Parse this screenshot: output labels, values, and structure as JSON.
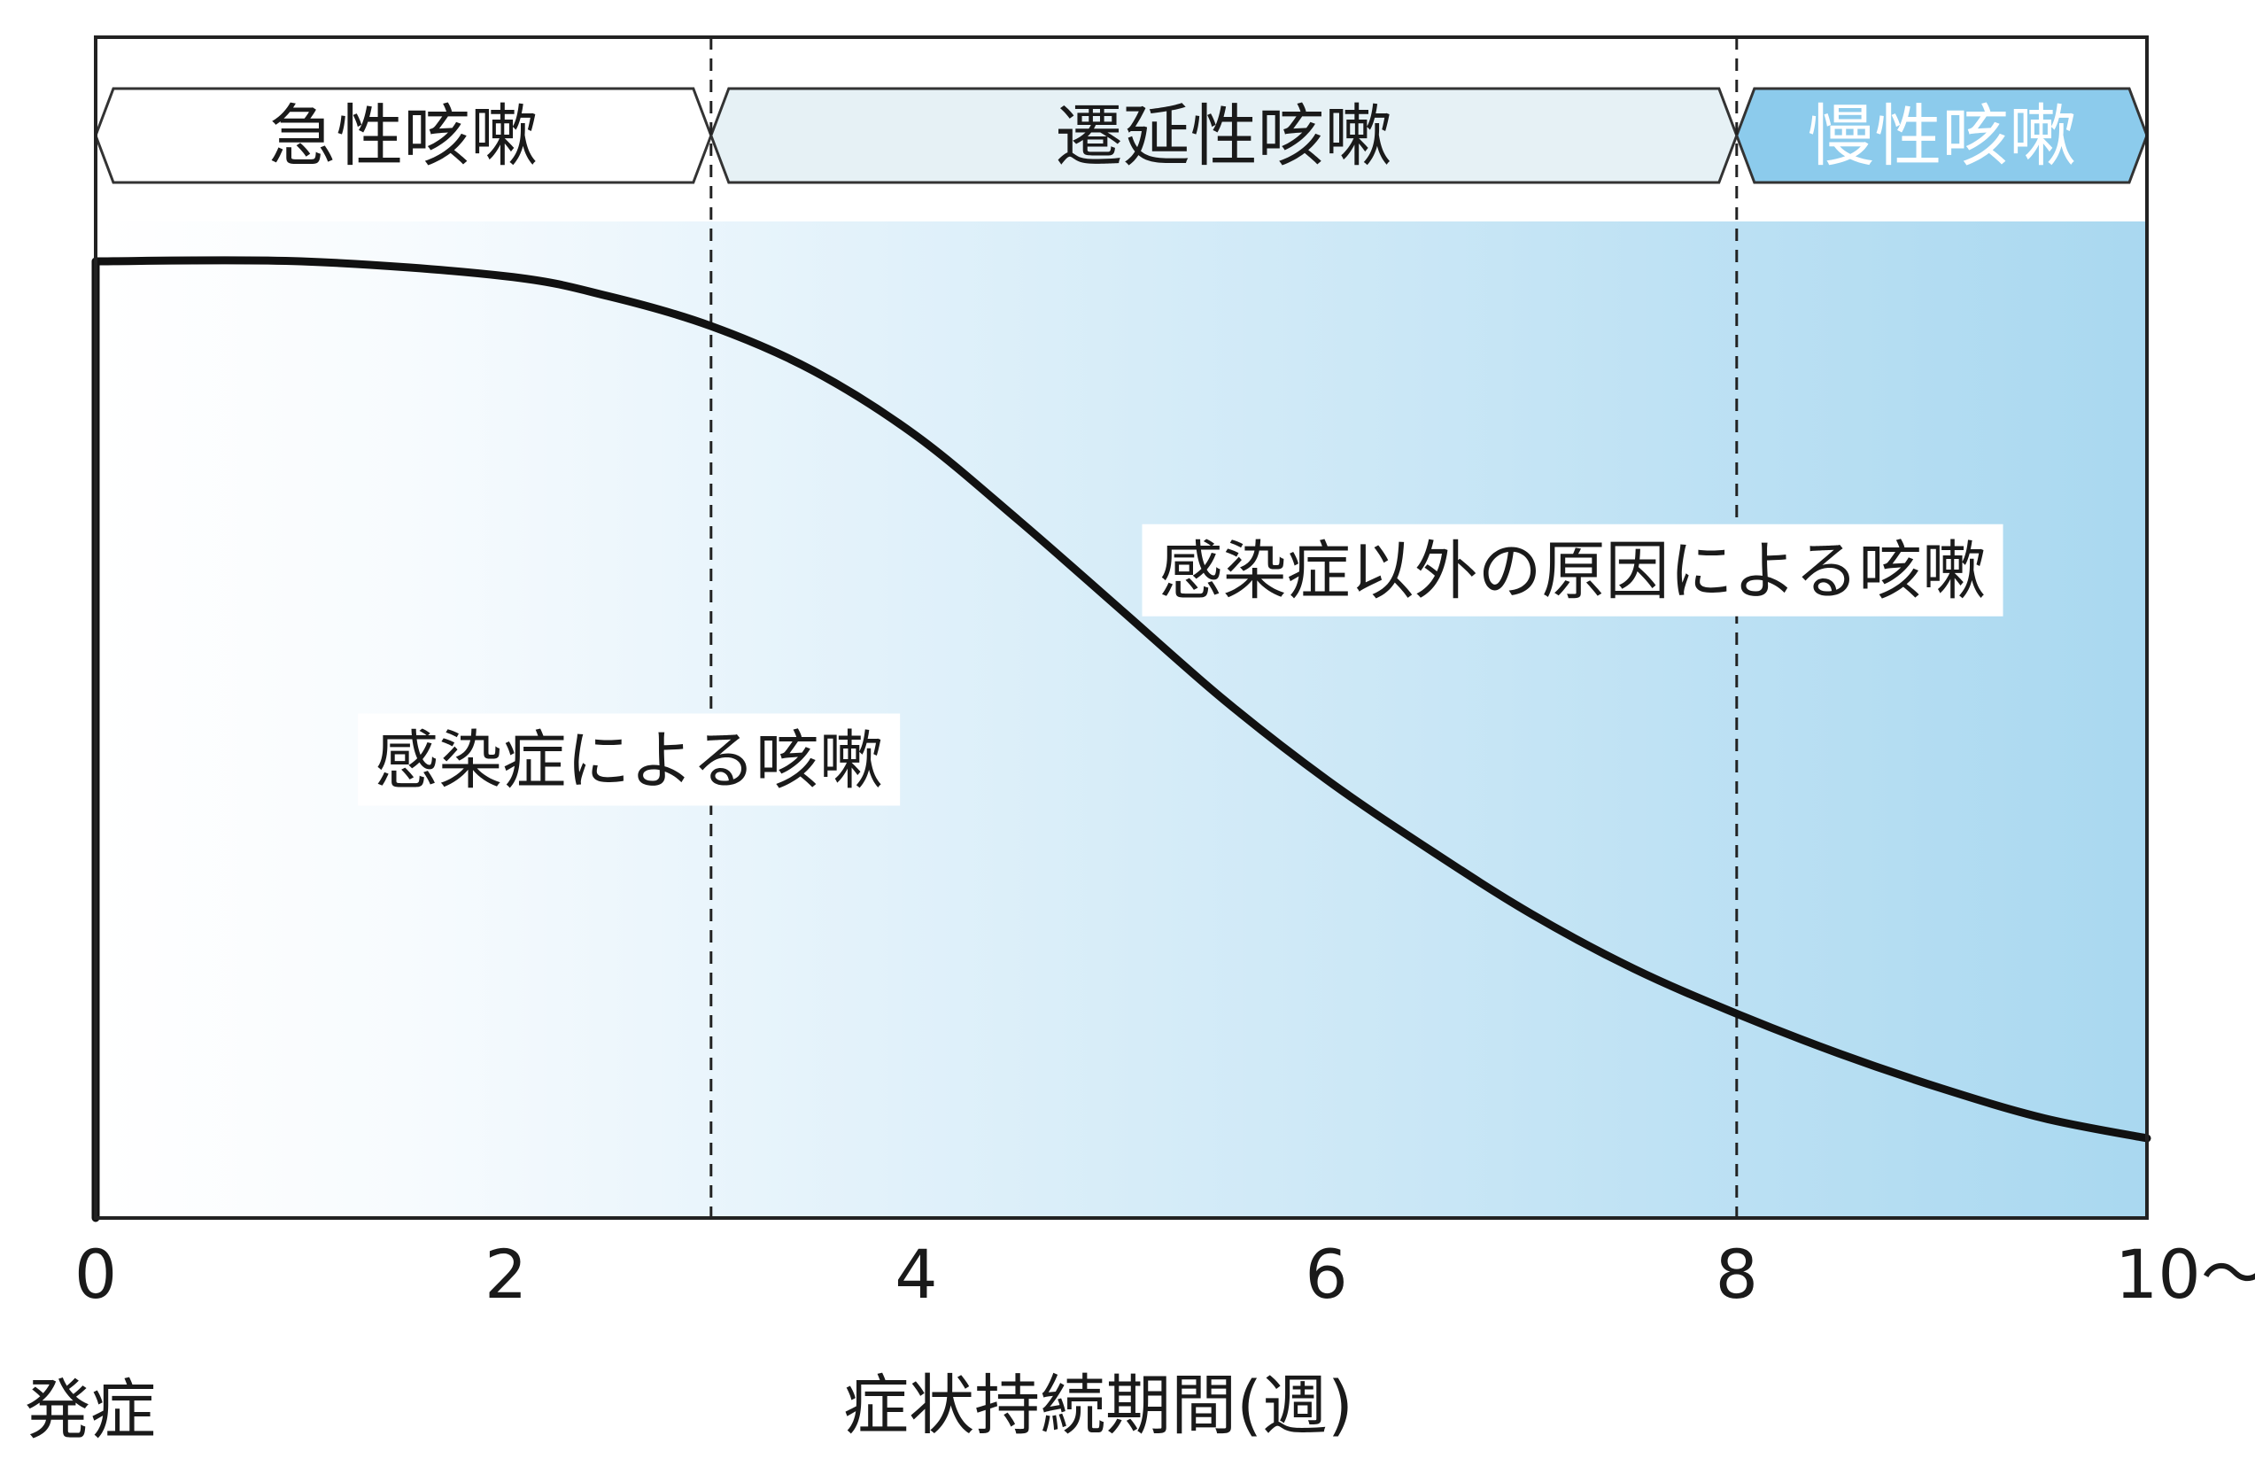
{
  "chart_data": {
    "type": "line",
    "title": "",
    "xlabel": "症状持続期間(週)",
    "ylabel": "",
    "xlim": [
      0,
      10
    ],
    "ylim": [
      0,
      1
    ],
    "x_ticks": [
      0,
      2,
      4,
      6,
      8,
      10
    ],
    "x_tick_labels": [
      "0",
      "2",
      "4",
      "6",
      "8",
      "10〜"
    ],
    "x_origin_label": "発症",
    "grid": false,
    "boundaries": [
      3,
      8
    ],
    "phases": [
      {
        "label": "急性咳嗽",
        "from": 0,
        "to": 3,
        "color": "#ffffff"
      },
      {
        "label": "遷延性咳嗽",
        "from": 3,
        "to": 8,
        "color": "#e6f1f5"
      },
      {
        "label": "慢性咳嗽",
        "from": 8,
        "to": 10,
        "color": "#8ccbec"
      }
    ],
    "series": [
      {
        "x": [
          0,
          1,
          2,
          2.5,
          3,
          3.5,
          4,
          4.5,
          5,
          5.5,
          6,
          6.5,
          7,
          7.5,
          8,
          8.5,
          9,
          9.5,
          10
        ],
        "y": [
          0.96,
          0.96,
          0.945,
          0.925,
          0.895,
          0.85,
          0.785,
          0.7,
          0.61,
          0.52,
          0.44,
          0.37,
          0.305,
          0.25,
          0.205,
          0.165,
          0.13,
          0.1,
          0.08
        ]
      }
    ],
    "annotations": [
      {
        "text": "感染症による咳嗽",
        "x": 2.6,
        "y": 0.46
      },
      {
        "text": "感染症以外の原因による咳嗽",
        "x": 7.2,
        "y": 0.65
      }
    ],
    "gradient_colors": [
      "#ffffff",
      "#a9d8f0"
    ],
    "line_color": "#111111"
  }
}
